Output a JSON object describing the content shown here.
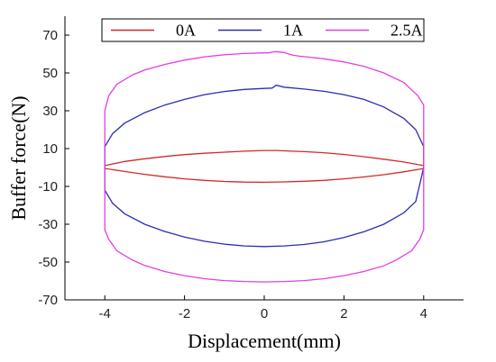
{
  "chart_data": {
    "type": "line",
    "title": "",
    "xlabel": "Displacement(mm)",
    "ylabel": "Buffer force(N)",
    "xlim": [
      -5,
      5
    ],
    "ylim": [
      -70,
      80
    ],
    "xticks": [
      -4,
      -2,
      0,
      2,
      4
    ],
    "yticks": [
      -70,
      -50,
      -30,
      -10,
      10,
      30,
      50,
      70
    ],
    "xtick_labels": [
      "-4",
      "-2",
      "0",
      "2",
      "4"
    ],
    "ytick_labels": [
      "-70",
      "-50",
      "-30",
      "-10",
      "10",
      "30",
      "50",
      "70"
    ],
    "grid": false,
    "legend_position": "top",
    "series": [
      {
        "name": "0A",
        "color": "#d62728",
        "x": [
          -4,
          -3.5,
          -3,
          -2.5,
          -2,
          -1.5,
          -1,
          -0.5,
          0,
          0.3,
          0.5,
          1,
          1.5,
          2,
          2.5,
          3,
          3.5,
          4,
          4,
          3.5,
          3,
          2.5,
          2,
          1.5,
          1,
          0.5,
          0,
          -0.5,
          -1,
          -1.5,
          -2,
          -2.5,
          -3,
          -3.5,
          -4,
          -4
        ],
        "y": [
          1,
          3.2,
          4.6,
          5.8,
          6.8,
          7.5,
          8.1,
          8.6,
          9,
          9,
          8.8,
          8.4,
          7.8,
          6.9,
          5.7,
          4.4,
          2.9,
          1,
          -0.5,
          -2.3,
          -3.8,
          -5,
          -6,
          -6.8,
          -7.3,
          -7.6,
          -7.8,
          -7.7,
          -7.4,
          -6.8,
          -6,
          -4.9,
          -3.6,
          -2.1,
          -0.5,
          1
        ]
      },
      {
        "name": "1A",
        "color": "#2b2bb8",
        "x": [
          -4,
          -4,
          -3.8,
          -3.5,
          -3,
          -2.5,
          -2,
          -1.5,
          -1,
          -0.5,
          0,
          0.2,
          0.3,
          0.5,
          1,
          1.5,
          2,
          2.5,
          3,
          3.5,
          3.8,
          4,
          4,
          3.8,
          3.5,
          3,
          2.5,
          2,
          1.5,
          1,
          0.5,
          0,
          -0.5,
          -1,
          -1.5,
          -2,
          -2.5,
          -3,
          -3.5,
          -3.8,
          -4,
          -4
        ],
        "y": [
          0,
          11,
          18,
          23.5,
          29,
          33,
          36,
          38.5,
          40.2,
          41.3,
          41.8,
          42,
          43.5,
          42.5,
          41.5,
          40.3,
          38.5,
          36,
          32,
          26,
          20,
          11,
          0,
          -18,
          -24,
          -30,
          -34,
          -37,
          -39.3,
          -40.7,
          -41.5,
          -41.8,
          -41.5,
          -40.5,
          -39,
          -36.8,
          -33.8,
          -30,
          -24.5,
          -19,
          -12,
          0
        ]
      },
      {
        "name": "2.5A",
        "color": "#e040e0",
        "x": [
          -4,
          -4,
          -3.9,
          -3.7,
          -3.3,
          -3,
          -2.5,
          -2,
          -1.5,
          -1,
          -0.5,
          0,
          0.1,
          0.2,
          0.3,
          0.5,
          0.7,
          0.9,
          1,
          1.5,
          2,
          2.5,
          3,
          3.5,
          3.85,
          4,
          4,
          4,
          3.9,
          3.7,
          3.3,
          3,
          2.5,
          2,
          1.5,
          1,
          0.5,
          0,
          -0.5,
          -1,
          -1.5,
          -2,
          -2.5,
          -3,
          -3.3,
          -3.7,
          -3.9,
          -4,
          -4
        ],
        "y": [
          -30,
          30,
          38,
          44,
          49,
          51.5,
          54.5,
          56.8,
          58.5,
          59.6,
          60.3,
          60.6,
          60.6,
          61,
          61.3,
          60.8,
          59.5,
          58.8,
          58.6,
          57.5,
          55.8,
          53.5,
          50,
          45,
          38,
          33,
          0,
          -33,
          -38,
          -44,
          -49,
          -52,
          -55,
          -57.2,
          -58.8,
          -59.8,
          -60.3,
          -60.5,
          -60.3,
          -59.8,
          -58.8,
          -57.2,
          -55,
          -51.8,
          -49,
          -44,
          -38,
          -33,
          -30
        ]
      }
    ]
  }
}
